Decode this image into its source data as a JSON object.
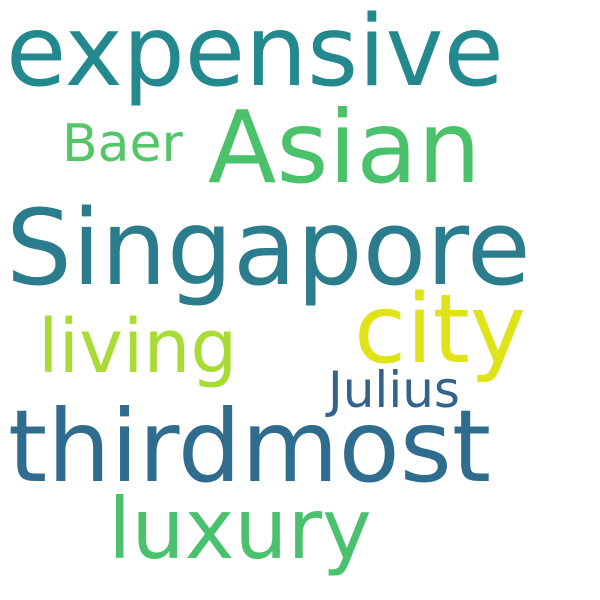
{
  "word_cloud": {
    "background": "#ffffff",
    "words": [
      {
        "key": "expensive",
        "text": "expensive",
        "color": "#23898e"
      },
      {
        "key": "asian",
        "text": "Asian",
        "color": "#4cc16b"
      },
      {
        "key": "baer",
        "text": "Baer",
        "color": "#54c568"
      },
      {
        "key": "singapore",
        "text": "Singapore",
        "color": "#2b7d8e"
      },
      {
        "key": "city",
        "text": "city",
        "color": "#dfe318"
      },
      {
        "key": "living",
        "text": "living",
        "color": "#a8db34"
      },
      {
        "key": "julius",
        "text": "Julius",
        "color": "#33638d"
      },
      {
        "key": "thirdmost",
        "text": "thirdmost",
        "color": "#2f6c8e"
      },
      {
        "key": "luxury",
        "text": "luxury",
        "color": "#4ac16d"
      }
    ]
  }
}
